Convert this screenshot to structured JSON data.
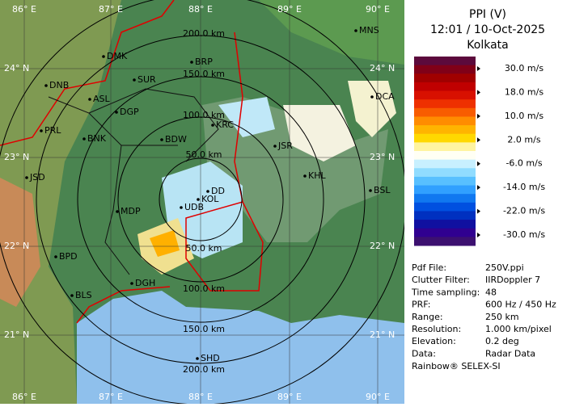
{
  "map": {
    "lon_labels": [
      "86° E",
      "87° E",
      "88° E",
      "89° E",
      "90° E"
    ],
    "lat_labels": [
      "24° N",
      "23° N",
      "22° N",
      "21° N"
    ],
    "range_labels_top": [
      "200.0 km",
      "150.0 km",
      "100.0 km",
      "50.0 km"
    ],
    "range_labels_bottom": [
      "50.0 km",
      "100.0 km",
      "150.0 km",
      "200.0 km"
    ],
    "cities": [
      "MNS",
      "DMK",
      "BRP",
      "DNB",
      "SUR",
      "ASL",
      "DGP",
      "DCA",
      "PRL",
      "BNK",
      "KRC",
      "BDW",
      "JSR",
      "JSD",
      "KHL",
      "DD",
      "KOL",
      "BSL",
      "MDP",
      "UDB",
      "BPD",
      "DGH",
      "BLS",
      "SHD"
    ]
  },
  "panel": {
    "title": "PPI (V)",
    "time": "12:01 / 10-Oct-2025",
    "site": "Kolkata",
    "scale_colors": [
      "#5c0a3c",
      "#800018",
      "#a00000",
      "#c00000",
      "#d81000",
      "#ee3000",
      "#f85c00",
      "#ff8c00",
      "#ffb400",
      "#ffd800",
      "#fff4a0",
      "#fffff4",
      "#c8f0ff",
      "#90dcff",
      "#58c0ff",
      "#30a0ff",
      "#1078f0",
      "#0050e0",
      "#0030c0",
      "#1010a0",
      "#300090",
      "#3c1070"
    ],
    "scale_labels": [
      "30.0 m/s",
      "18.0 m/s",
      "10.0 m/s",
      "2.0 m/s",
      "-6.0 m/s",
      "-14.0 m/s",
      "-22.0 m/s",
      "-30.0 m/s"
    ],
    "info": [
      [
        "Pdf File:",
        "250V.ppi"
      ],
      [
        "Clutter Filter:",
        "IIRDoppler 7"
      ],
      [
        "Time sampling:",
        "48"
      ],
      [
        "PRF:",
        "600 Hz / 450 Hz"
      ],
      [
        "Range:",
        "250 km"
      ],
      [
        "Resolution:",
        "1.000 km/pixel"
      ],
      [
        "Elevation:",
        "0.2 deg"
      ],
      [
        "Data:",
        "Radar Data"
      ]
    ],
    "footer": "Rainbow® SELEX-SI"
  }
}
